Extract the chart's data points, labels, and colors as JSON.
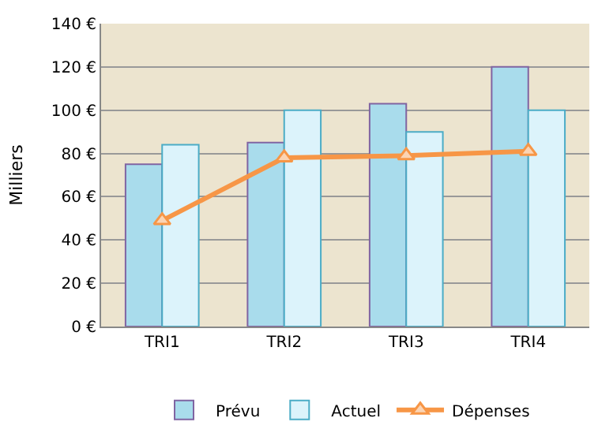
{
  "chart_data": {
    "type": "bar",
    "ylabel": "Milliers",
    "categories": [
      "TRI1",
      "TRI2",
      "TRI3",
      "TRI4"
    ],
    "series": [
      {
        "name": "Prévu",
        "color": "#a9dcec",
        "values": [
          75,
          85,
          103,
          120
        ]
      },
      {
        "name": "Actuel",
        "color": "#dcf3fb",
        "values": [
          84,
          100,
          90,
          100
        ]
      },
      {
        "name": "Dépenses",
        "type": "line",
        "color": "#f79646",
        "values": [
          49,
          78,
          79,
          81
        ]
      }
    ],
    "ylim": [
      0,
      140
    ],
    "yticks": [
      {
        "value": 0,
        "label": "0 €"
      },
      {
        "value": 20,
        "label": "20 €"
      },
      {
        "value": 40,
        "label": "40 €"
      },
      {
        "value": 60,
        "label": "60 €"
      },
      {
        "value": 80,
        "label": "80 €"
      },
      {
        "value": 100,
        "label": "100 €"
      },
      {
        "value": 120,
        "label": "120 €"
      },
      {
        "value": 140,
        "label": "140 €"
      }
    ],
    "grid": "y",
    "legend": "bottom",
    "marker": "triangle"
  }
}
